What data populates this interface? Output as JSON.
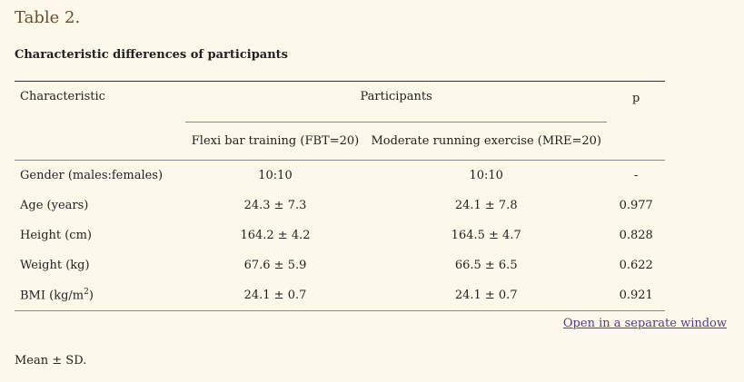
{
  "title": "Table 2.",
  "caption": "Characteristic differences of participants",
  "table": {
    "headers": {
      "characteristic": "Characteristic",
      "participants": "Participants",
      "p": "p",
      "group1": "Flexi bar training (FBT=20)",
      "group2": "Moderate running exercise (MRE=20)"
    },
    "rows": [
      {
        "label": "Gender (males:females)",
        "fbt": "10:10",
        "mre": "10:10",
        "p": "-"
      },
      {
        "label": "Age (years)",
        "fbt": "24.3 ± 7.3",
        "mre": "24.1 ± 7.8",
        "p": "0.977"
      },
      {
        "label": "Height (cm)",
        "fbt": "164.2 ± 4.2",
        "mre": "164.5 ± 4.7",
        "p": "0.828"
      },
      {
        "label": "Weight (kg)",
        "fbt": "67.6 ± 5.9",
        "mre": "66.5 ± 6.5",
        "p": "0.622"
      },
      {
        "label_prefix": "BMI (kg/m",
        "label_sup": "2",
        "label_suffix": ")",
        "fbt": "24.1 ± 0.7",
        "mre": "24.1 ± 0.7",
        "p": "0.921"
      }
    ]
  },
  "link_text": "Open in a separate window",
  "footnote": "Mean ± SD."
}
